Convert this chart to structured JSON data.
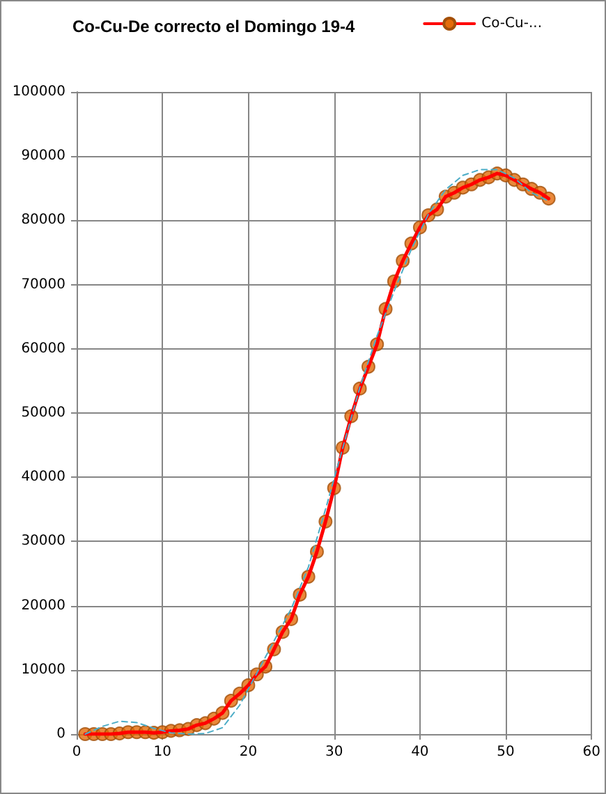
{
  "chart_data": {
    "type": "line",
    "title": "Co-Cu-De correcto el Domingo 19-4",
    "x": [
      1,
      2,
      3,
      4,
      5,
      6,
      7,
      8,
      9,
      10,
      11,
      12,
      13,
      14,
      15,
      16,
      17,
      18,
      19,
      20,
      21,
      22,
      23,
      24,
      25,
      26,
      27,
      28,
      29,
      30,
      31,
      32,
      33,
      34,
      35,
      36,
      37,
      38,
      39,
      40,
      41,
      42,
      43,
      44,
      45,
      46,
      47,
      48,
      49,
      50,
      51,
      52,
      53,
      54,
      55
    ],
    "series": [
      {
        "name": "Co-Cu-...",
        "color": "#e46c0a",
        "values": [
          0,
          0,
          0,
          0,
          100,
          300,
          300,
          300,
          200,
          300,
          500,
          600,
          800,
          1400,
          1700,
          2400,
          3300,
          5200,
          6300,
          7600,
          9300,
          10500,
          13200,
          15900,
          17900,
          21700,
          24500,
          28400,
          33100,
          38300,
          44600,
          49500,
          53800,
          57200,
          60700,
          66200,
          70500,
          73700,
          76400,
          78900,
          80800,
          81700,
          83700,
          84300,
          85100,
          85600,
          86300,
          86700,
          87300,
          87000,
          86300,
          85600,
          84900,
          84300,
          83400
        ],
        "marker": "circle"
      },
      {
        "type": "line",
        "color": "#4bacc6",
        "marker": "none",
        "line_style": "dashed",
        "x": [
          1,
          3,
          5,
          7,
          9,
          11,
          13,
          15,
          17,
          19,
          21,
          23,
          25,
          27,
          29,
          31,
          33,
          35,
          37,
          39,
          41,
          43,
          45,
          47,
          49,
          51,
          53,
          55
        ],
        "values": [
          0,
          1200,
          2000,
          1800,
          900,
          200,
          0,
          100,
          1000,
          4500,
          9500,
          14500,
          19500,
          26000,
          35000,
          44500,
          54000,
          62000,
          69000,
          75500,
          81000,
          84800,
          87000,
          87900,
          87900,
          86600,
          84300,
          83000
        ]
      }
    ],
    "xlim": [
      0,
      60
    ],
    "xticks": [
      0,
      10,
      20,
      30,
      40,
      50,
      60
    ],
    "ylim": [
      0,
      100000
    ],
    "yticks": [
      0,
      10000,
      20000,
      30000,
      40000,
      50000,
      60000,
      70000,
      80000,
      90000,
      100000
    ],
    "grid": true,
    "legend": "top right"
  }
}
